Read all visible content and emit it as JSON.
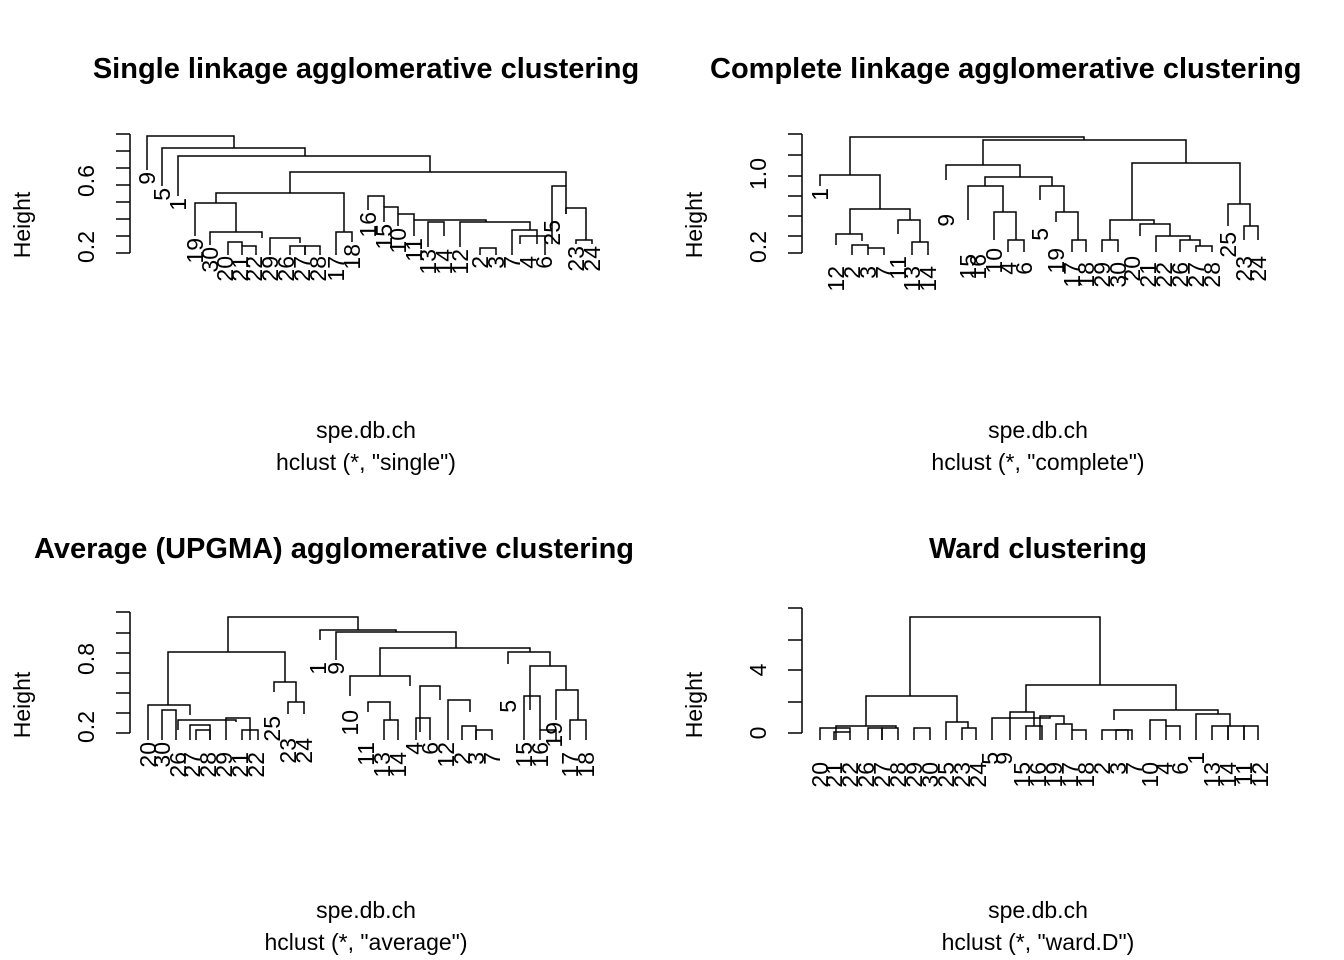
{
  "figure": {
    "layout": "2x2 grid of dendrograms",
    "colors": {
      "background": "#ffffff",
      "ink": "#000000"
    }
  },
  "chart_data": [
    {
      "type": "dendrogram",
      "title": "Single linkage agglomerative clustering",
      "xlabel": "spe.db.ch",
      "subtitle": "hclust (*, \"single\")",
      "ylabel": "Height",
      "y_ticks": [
        "0.2",
        "0.6"
      ],
      "leaf_order": [
        "9",
        "5",
        "1",
        "19",
        "30",
        "20",
        "21",
        "22",
        "29",
        "26",
        "27",
        "28",
        "17",
        "18",
        "16",
        "15",
        "10",
        "11",
        "13",
        "14",
        "12",
        "2",
        "3",
        "7",
        "4",
        "6",
        "25",
        "23",
        "24"
      ],
      "merges": [
        [
          [
            "9"
          ],
          [
            "5",
            "1",
            "19",
            "30",
            "20",
            "21",
            "22",
            "29",
            "26",
            "27",
            "28",
            "17",
            "18",
            "16",
            "15",
            "10",
            "11",
            "13",
            "14",
            "12",
            "2",
            "3",
            "7",
            "4",
            "6",
            "25",
            "23",
            "24"
          ],
          0.95
        ],
        [
          [
            "5"
          ],
          [
            "1",
            "19",
            "30",
            "20",
            "21",
            "22",
            "29",
            "26",
            "27",
            "28",
            "17",
            "18",
            "16",
            "15",
            "10",
            "11",
            "13",
            "14",
            "12",
            "2",
            "3",
            "7",
            "4",
            "6",
            "25",
            "23",
            "24"
          ],
          0.88
        ],
        [
          [
            "1"
          ],
          [
            "19",
            "30",
            "20",
            "21",
            "22",
            "29",
            "26",
            "27",
            "28",
            "17",
            "18",
            "16",
            "15",
            "10",
            "11",
            "13",
            "14",
            "12",
            "2",
            "3",
            "7",
            "4",
            "6",
            "25",
            "23",
            "24"
          ],
          0.78
        ],
        [
          [
            "19",
            "30",
            "20",
            "21",
            "22",
            "29",
            "26",
            "27",
            "28",
            "17",
            "18",
            "16",
            "15",
            "10",
            "11",
            "13",
            "14",
            "12",
            "2",
            "3",
            "7",
            "4",
            "6"
          ],
          [
            "25",
            "23",
            "24"
          ],
          0.67
        ],
        [
          [
            "19",
            "30",
            "20",
            "21",
            "22",
            "29",
            "26",
            "27",
            "28"
          ],
          [
            "17",
            "18",
            "16",
            "15",
            "10",
            "11",
            "13",
            "14",
            "12",
            "2",
            "3",
            "7",
            "4",
            "6"
          ],
          0.5
        ],
        [
          [
            "19"
          ],
          [
            "30",
            "20",
            "21",
            "22",
            "29",
            "26",
            "27",
            "28"
          ],
          0.43
        ]
      ]
    },
    {
      "type": "dendrogram",
      "title": "Complete linkage agglomerative clustering",
      "xlabel": "spe.db.ch",
      "subtitle": "hclust (*, \"complete\")",
      "ylabel": "Height",
      "y_ticks": [
        "0.2",
        "0.6",
        "1.0"
      ],
      "leaf_order": [
        "1",
        "12",
        "2",
        "3",
        "7",
        "11",
        "13",
        "14",
        "9",
        "15",
        "16",
        "10",
        "4",
        "6",
        "5",
        "19",
        "17",
        "18",
        "29",
        "30",
        "20",
        "21",
        "22",
        "26",
        "27",
        "28",
        "25",
        "23",
        "24"
      ],
      "merges": [
        [
          [
            "1",
            "12",
            "2",
            "3",
            "7",
            "11",
            "13",
            "14"
          ],
          [
            "9",
            "15",
            "16",
            "10",
            "4",
            "6",
            "5",
            "19",
            "17",
            "18",
            "29",
            "30",
            "20",
            "21",
            "22",
            "26",
            "27",
            "28",
            "25",
            "23",
            "24"
          ],
          1.57
        ],
        [
          [
            "9",
            "15",
            "16",
            "10",
            "4",
            "6",
            "5",
            "19",
            "17",
            "18"
          ],
          [
            "29",
            "30",
            "20",
            "21",
            "22",
            "26",
            "27",
            "28",
            "25",
            "23",
            "24"
          ],
          1.48
        ],
        [
          [
            "1"
          ],
          [
            "12",
            "2",
            "3",
            "7",
            "11",
            "13",
            "14"
          ],
          0.98
        ]
      ]
    },
    {
      "type": "dendrogram",
      "title": "Average (UPGMA) agglomerative clustering",
      "xlabel": "spe.db.ch",
      "subtitle": "hclust (*, \"average\")",
      "ylabel": "Height",
      "y_ticks": [
        "0.2",
        "0.8"
      ],
      "leaf_order": [
        "20",
        "30",
        "26",
        "27",
        "28",
        "29",
        "21",
        "22",
        "25",
        "23",
        "24",
        "1",
        "9",
        "10",
        "11",
        "13",
        "14",
        "4",
        "6",
        "12",
        "2",
        "3",
        "7",
        "5",
        "15",
        "16",
        "19",
        "17",
        "18"
      ],
      "merges": [
        [
          [
            "20",
            "30",
            "26",
            "27",
            "28",
            "29",
            "21",
            "22",
            "25",
            "23",
            "24"
          ],
          [
            "1",
            "9",
            "10",
            "11",
            "13",
            "14",
            "4",
            "6",
            "12",
            "2",
            "3",
            "7",
            "5",
            "15",
            "16",
            "19",
            "17",
            "18"
          ],
          1.33
        ],
        [
          [
            "1"
          ],
          [
            "9",
            "10",
            "11",
            "13",
            "14",
            "4",
            "6",
            "12",
            "2",
            "3",
            "7",
            "5",
            "15",
            "16",
            "19",
            "17",
            "18"
          ],
          1.19
        ]
      ]
    },
    {
      "type": "dendrogram",
      "title": "Ward clustering",
      "xlabel": "spe.db.ch",
      "subtitle": "hclust (*, \"ward.D\")",
      "ylabel": "Height",
      "y_ticks": [
        "0",
        "4"
      ],
      "leaf_order": [
        "20",
        "21",
        "22",
        "26",
        "27",
        "28",
        "29",
        "30",
        "25",
        "23",
        "24",
        "5",
        "9",
        "15",
        "16",
        "19",
        "17",
        "18",
        "2",
        "3",
        "7",
        "10",
        "4",
        "6",
        "1",
        "13",
        "14",
        "11",
        "12"
      ],
      "merges": [
        [
          [
            "20",
            "21",
            "22",
            "26",
            "27",
            "28",
            "29",
            "30",
            "25",
            "23",
            "24"
          ],
          [
            "5",
            "9",
            "15",
            "16",
            "19",
            "17",
            "18",
            "2",
            "3",
            "7",
            "10",
            "4",
            "6",
            "1",
            "13",
            "14",
            "11",
            "12"
          ],
          7.3
        ],
        [
          [
            "20",
            "21",
            "22",
            "26",
            "27",
            "28",
            "29",
            "30"
          ],
          [
            "25",
            "23",
            "24"
          ],
          2.4
        ],
        [
          [
            "5",
            "9",
            "15",
            "16",
            "19",
            "17",
            "18"
          ],
          [
            "2",
            "3",
            "7",
            "10",
            "4",
            "6",
            "1",
            "13",
            "14",
            "11",
            "12"
          ],
          3.1
        ]
      ]
    }
  ]
}
